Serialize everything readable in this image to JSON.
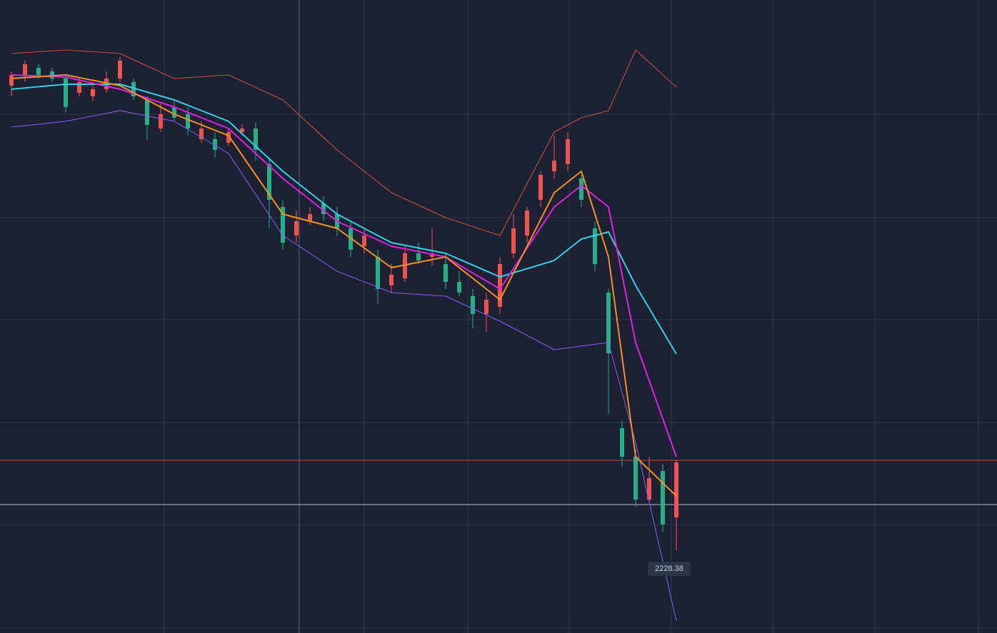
{
  "chart_data": {
    "type": "candlestick",
    "ylim": [
      2170.5,
      2614
    ],
    "up_color": "#ef5350",
    "down_color": "#26b08a",
    "candles": {
      "open": [
        2554,
        2561.5,
        2566.5,
        2564,
        2559,
        2549,
        2546.5,
        2551.5,
        2559,
        2556.5,
        2544,
        2524,
        2539,
        2534,
        2516.5,
        2516.5,
        2514,
        2521.5,
        2524,
        2499,
        2469,
        2449,
        2459,
        2471.5,
        2464,
        2454,
        2441.5,
        2434,
        2414,
        2419,
        2436.5,
        2434,
        2429,
        2416.5,
        2406.5,
        2394,
        2399,
        2436.5,
        2449,
        2474,
        2494,
        2499,
        2489,
        2454,
        2409,
        2314,
        2294,
        2264,
        2284,
        2251.5
      ],
      "high": [
        2564,
        2571.5,
        2569,
        2566.5,
        2561.5,
        2559,
        2554,
        2564,
        2574,
        2559,
        2546.5,
        2541.5,
        2544,
        2539,
        2529,
        2521.5,
        2524,
        2526.5,
        2528,
        2504,
        2474,
        2466.5,
        2469,
        2476.5,
        2469,
        2459,
        2454,
        2439,
        2429,
        2441.5,
        2444,
        2454,
        2436.5,
        2424,
        2411.5,
        2409,
        2434,
        2464,
        2469,
        2494,
        2519,
        2521.5,
        2491.5,
        2459,
        2411.5,
        2319,
        2299,
        2294,
        2289,
        2291.5
      ],
      "low": [
        2546.5,
        2556.5,
        2559,
        2556.5,
        2535,
        2546.5,
        2543,
        2549,
        2556.5,
        2544,
        2516.5,
        2521.5,
        2529,
        2519,
        2514,
        2504,
        2511.5,
        2519,
        2501.5,
        2454,
        2439,
        2444,
        2456.5,
        2459,
        2449,
        2434,
        2436.5,
        2401.5,
        2409,
        2416.5,
        2429,
        2428,
        2411.5,
        2406.5,
        2384,
        2381.5,
        2394,
        2433,
        2444,
        2469,
        2489,
        2494,
        2469,
        2424,
        2324,
        2286.5,
        2259,
        2261.5,
        2241.5,
        2228.38
      ],
      "close": [
        2561.5,
        2569,
        2561.5,
        2559,
        2539,
        2556.5,
        2551.5,
        2559,
        2571.5,
        2546.5,
        2526.5,
        2534,
        2531.5,
        2524,
        2524,
        2509,
        2521.5,
        2524,
        2509,
        2474,
        2444,
        2459,
        2464,
        2464,
        2454,
        2439,
        2449,
        2411.5,
        2421.5,
        2436.5,
        2431.5,
        2436.5,
        2416.5,
        2409,
        2394,
        2404,
        2429,
        2454,
        2466.5,
        2491.5,
        2501.5,
        2516.5,
        2474,
        2429,
        2366.5,
        2294,
        2264,
        2279,
        2246.5,
        2290
      ]
    },
    "lines": [
      {
        "color": "#c8503c",
        "width": 1,
        "x": [
          0,
          4,
          8,
          12,
          16,
          20,
          24,
          28,
          32,
          36,
          40,
          42,
          44,
          46,
          49
        ],
        "values": [
          2576.5,
          2579,
          2576.5,
          2559,
          2561.5,
          2544,
          2509,
          2479,
          2461.5,
          2449,
          2521.5,
          2531.5,
          2536.5,
          2579,
          2553
        ]
      },
      {
        "color": "#8a5cf0",
        "width": 1,
        "x": [
          0,
          4,
          8,
          12,
          16,
          20,
          24,
          28,
          32,
          36,
          40,
          42,
          44,
          46,
          49
        ],
        "values": [
          2525,
          2529,
          2536.5,
          2529,
          2506.5,
          2449,
          2424,
          2409,
          2406.5,
          2389,
          2369,
          2371.5,
          2374,
          2304,
          2179
        ]
      },
      {
        "color": "#34d0e2",
        "width": 2,
        "x": [
          0,
          4,
          8,
          12,
          16,
          20,
          24,
          28,
          32,
          36,
          40,
          42,
          44,
          46,
          49
        ],
        "values": [
          2551.5,
          2555,
          2555,
          2544,
          2529,
          2494,
          2464,
          2444,
          2436.5,
          2420,
          2431.5,
          2446.5,
          2451.5,
          2414,
          2366
        ]
      },
      {
        "color": "#e020e0",
        "width": 2,
        "x": [
          0,
          4,
          8,
          12,
          16,
          20,
          24,
          28,
          32,
          36,
          40,
          42,
          44,
          46,
          49
        ],
        "values": [
          2561.5,
          2560,
          2551.5,
          2539,
          2524,
          2489,
          2459,
          2441.5,
          2434,
          2411.5,
          2469,
          2484,
          2469,
          2374,
          2294
        ]
      },
      {
        "color": "#f5901c",
        "width": 2,
        "x": [
          0,
          4,
          8,
          12,
          16,
          20,
          24,
          28,
          32,
          36,
          40,
          42,
          44,
          46,
          49
        ],
        "values": [
          2559,
          2561.5,
          2554,
          2534,
          2519,
          2464,
          2454,
          2426.5,
          2434,
          2404,
          2479,
          2494,
          2434,
          2294,
          2266.5
        ]
      }
    ],
    "price_lines": [
      {
        "value": 2291.5,
        "color": "#c0453c"
      },
      {
        "value": 2260.5,
        "color": "#b8bcc8"
      }
    ]
  }
}
